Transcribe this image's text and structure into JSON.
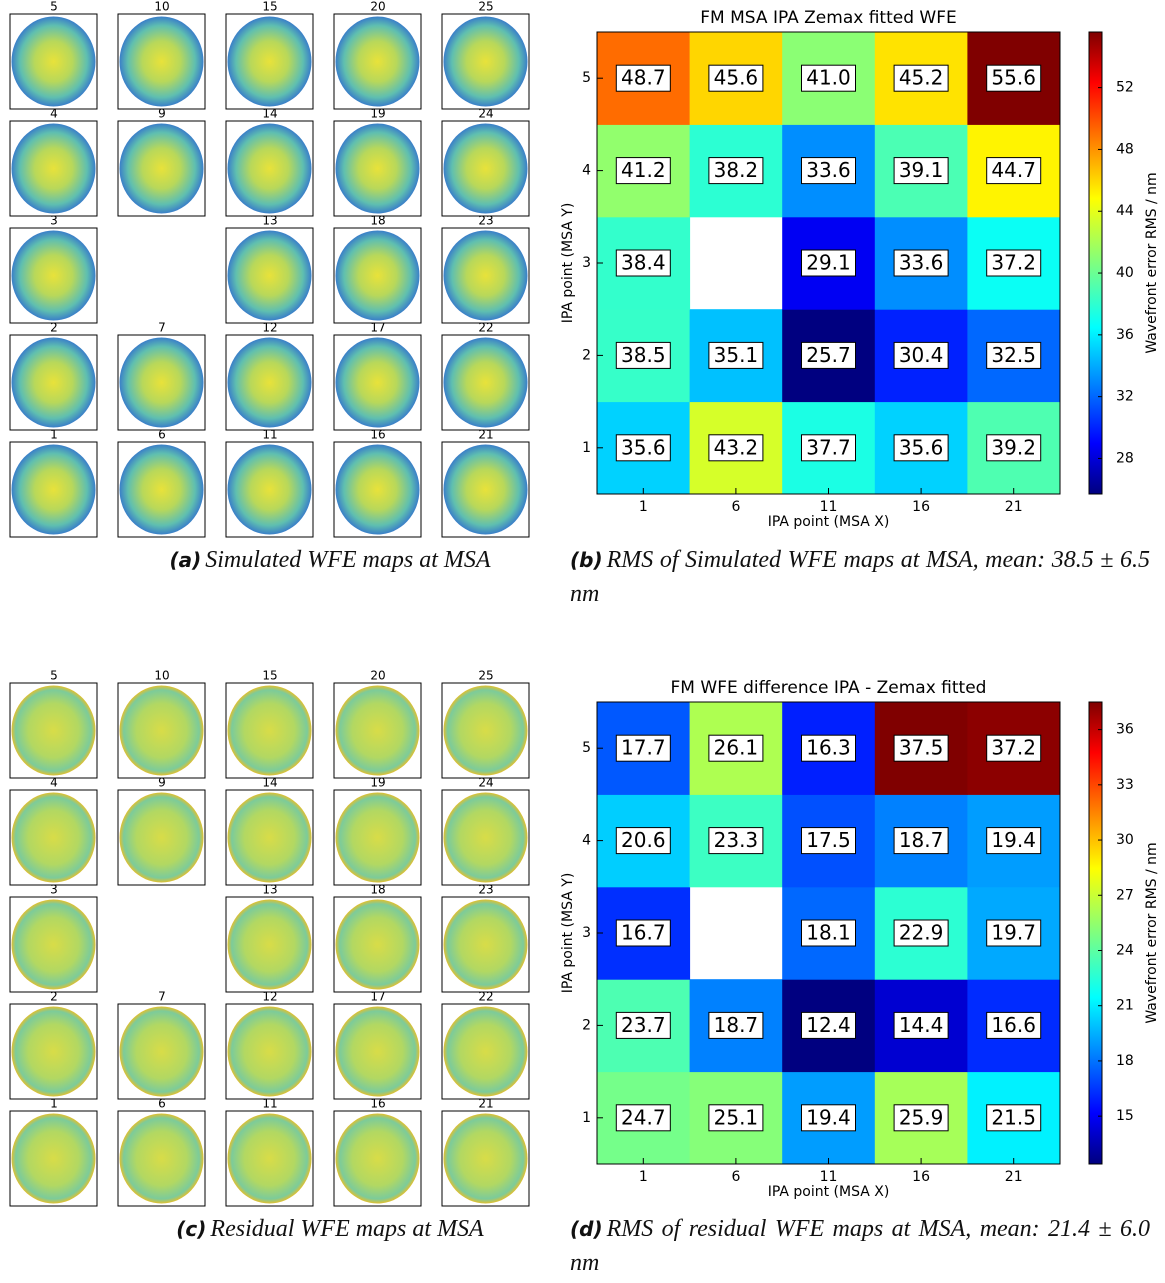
{
  "chart_data": [
    {
      "type": "heatmap",
      "title": "FM MSA IPA Zemax fitted WFE",
      "x_label": "IPA point (MSA X)",
      "y_label": "IPA point (MSA Y)",
      "categories": [
        1,
        6,
        11,
        16,
        21
      ],
      "y_categories": [
        1,
        2,
        3,
        4,
        5
      ],
      "values": [
        [
          35.6,
          43.2,
          37.7,
          35.6,
          39.2
        ],
        [
          38.5,
          35.1,
          25.7,
          30.4,
          32.5
        ],
        [
          38.4,
          null,
          29.1,
          33.6,
          37.2
        ],
        [
          41.2,
          38.2,
          33.6,
          39.1,
          44.7
        ],
        [
          48.7,
          45.6,
          41.0,
          45.2,
          55.6
        ]
      ],
      "value_labels": [
        [
          "35.6",
          "43.2",
          "37.7",
          "35.6",
          "39.2"
        ],
        [
          "38.5",
          "35.1",
          "25.7",
          "30.4",
          "32.5"
        ],
        [
          "38.4",
          null,
          "29.1",
          "33.6",
          "37.2"
        ],
        [
          "41.2",
          "38.2",
          "33.6",
          "39.1",
          "44.7"
        ],
        [
          "48.7",
          "45.6",
          "41.0",
          "45.2",
          "55.6"
        ]
      ],
      "colormap": "jet",
      "colorbar_label": "Wavefront error RMS / nm",
      "zlim": [
        25.7,
        55.6
      ],
      "zticks": [
        28,
        32,
        36,
        40,
        44,
        48,
        52
      ]
    },
    {
      "type": "heatmap",
      "title": "FM WFE difference IPA - Zemax fitted",
      "x_label": "IPA point (MSA X)",
      "y_label": "IPA point (MSA Y)",
      "categories": [
        1,
        6,
        11,
        16,
        21
      ],
      "y_categories": [
        1,
        2,
        3,
        4,
        5
      ],
      "values": [
        [
          24.7,
          25.1,
          19.4,
          25.9,
          21.5
        ],
        [
          23.7,
          18.7,
          12.4,
          14.4,
          16.6
        ],
        [
          16.7,
          null,
          18.1,
          22.9,
          19.7
        ],
        [
          20.6,
          23.3,
          17.5,
          18.7,
          19.4
        ],
        [
          17.7,
          26.1,
          16.3,
          37.5,
          37.2
        ]
      ],
      "value_labels": [
        [
          "24.7",
          "25.1",
          "19.4",
          "25.9",
          "21.5"
        ],
        [
          "23.7",
          "18.7",
          "12.4",
          "14.4",
          "16.6"
        ],
        [
          "16.7",
          null,
          "18.1",
          "22.9",
          "19.7"
        ],
        [
          "20.6",
          "23.3",
          "17.5",
          "18.7",
          "19.4"
        ],
        [
          "17.7",
          "26.1",
          "16.3",
          "37.5",
          "37.2"
        ]
      ],
      "colormap": "jet",
      "colorbar_label": "Wavefront error RMS / nm",
      "zlim": [
        12.4,
        37.5
      ],
      "zticks": [
        15,
        18,
        21,
        24,
        27,
        30,
        33,
        36
      ]
    }
  ],
  "map_panels": [
    {
      "labels": [
        [
          5,
          10,
          15,
          20,
          25
        ],
        [
          4,
          9,
          14,
          19,
          24
        ],
        [
          3,
          null,
          13,
          18,
          23
        ],
        [
          2,
          7,
          12,
          17,
          22
        ],
        [
          1,
          6,
          11,
          16,
          21
        ]
      ]
    },
    {
      "labels": [
        [
          5,
          10,
          15,
          20,
          25
        ],
        [
          4,
          9,
          14,
          19,
          24
        ],
        [
          3,
          null,
          13,
          18,
          23
        ],
        [
          2,
          7,
          12,
          17,
          22
        ],
        [
          1,
          6,
          11,
          16,
          21
        ]
      ]
    }
  ],
  "captions": [
    {
      "label": "(a)",
      "text": "Simulated WFE maps at MSA"
    },
    {
      "label": "(b)",
      "text": "RMS of Simulated WFE maps at MSA, mean: 38.5 ± 6.5 nm"
    },
    {
      "label": "(c)",
      "text": "Residual WFE maps at MSA"
    },
    {
      "label": "(d)",
      "text": "RMS of residual WFE maps at MSA, mean: 21.4 ± 6.0 nm"
    }
  ]
}
